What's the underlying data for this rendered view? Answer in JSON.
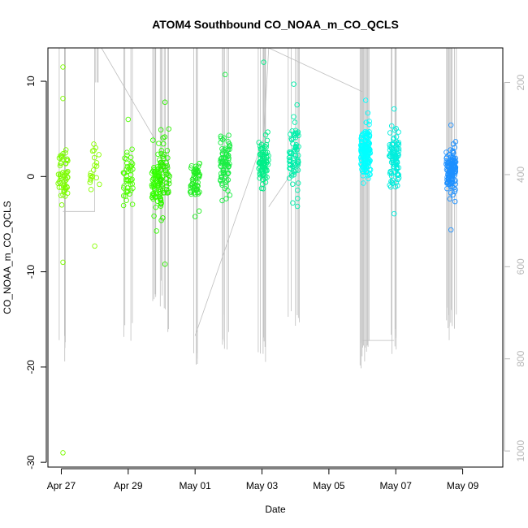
{
  "chart_data": {
    "type": "scatter",
    "title": "ATOM4 Southbound CO_NOAA_m_CO_QCLS",
    "xlabel": "Date",
    "ylabel": "CO_NOAA_m_CO_QCLS",
    "x_ticks": [
      "Apr 27",
      "Apr 29",
      "May 01",
      "May 03",
      "May 05",
      "May 07",
      "May 09"
    ],
    "y_ticks": [
      "-30",
      "-20",
      "-10",
      "0",
      "10"
    ],
    "y2_ticks": [
      "200",
      "400",
      "600",
      "800",
      "1000"
    ],
    "xlim_days": [
      26.6,
      40.2
    ],
    "ylim": [
      -30.5,
      13.5
    ],
    "y2lim_reversed": [
      1035,
      125
    ],
    "grid": false,
    "colors": {
      "altitude_line": "#bebebe",
      "right_axis": "#b8b8b8",
      "frame": "#000000"
    },
    "clusters": [
      {
        "day": 27.05,
        "center": 0.0,
        "spread": 2.2,
        "n": 55,
        "color": "#7CFC00",
        "outliers": [
          11.5,
          8.2,
          -9.0,
          -29.0
        ],
        "min_profile": 830
      },
      {
        "day": 28.0,
        "center": 0.5,
        "spread": 2.5,
        "n": 20,
        "color": "#88FF00",
        "outliers": [
          -7.3
        ],
        "min_profile": 125
      },
      {
        "day": 29.0,
        "center": 0.0,
        "spread": 2.2,
        "n": 45,
        "color": "#4FFF00",
        "outliers": [
          6.0
        ],
        "min_profile": 790
      },
      {
        "day": 29.85,
        "center": -0.5,
        "spread": 2.5,
        "n": 80,
        "color": "#33FF00",
        "outliers": [],
        "min_profile": 700
      },
      {
        "day": 30.1,
        "center": 0.0,
        "spread": 3.0,
        "n": 50,
        "color": "#2EF000",
        "outliers": [
          7.8,
          -9.2
        ],
        "min_profile": 760
      },
      {
        "day": 31.0,
        "center": -0.5,
        "spread": 1.8,
        "n": 55,
        "color": "#22EE22",
        "outliers": [
          -4.2
        ],
        "min_profile": 820
      },
      {
        "day": 31.9,
        "center": 1.0,
        "spread": 2.3,
        "n": 80,
        "color": "#1AEE44",
        "outliers": [
          10.7
        ],
        "min_profile": 780
      },
      {
        "day": 33.05,
        "center": 1.5,
        "spread": 2.5,
        "n": 80,
        "color": "#00EE88",
        "outliers": [
          12.0
        ],
        "min_profile": 830
      },
      {
        "day": 33.95,
        "center": 2.0,
        "spread": 3.0,
        "n": 70,
        "color": "#00EEAA",
        "outliers": [
          9.7
        ],
        "min_profile": 760
      },
      {
        "day": 36.1,
        "center": 2.5,
        "spread": 2.2,
        "n": 150,
        "color": "#00FFFF",
        "outliers": [
          8.0
        ],
        "min_profile": 840
      },
      {
        "day": 36.95,
        "center": 1.8,
        "spread": 2.3,
        "n": 90,
        "color": "#00EEDD",
        "outliers": [
          7.1,
          -3.9
        ],
        "min_profile": 790
      },
      {
        "day": 38.65,
        "center": 0.8,
        "spread": 2.0,
        "n": 130,
        "color": "#1E90FF",
        "outliers": [
          5.4,
          -5.6
        ],
        "min_profile": 760
      }
    ]
  }
}
